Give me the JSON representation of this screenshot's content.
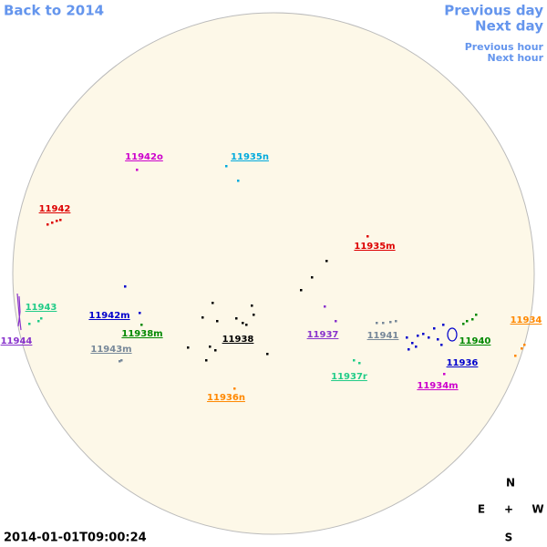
{
  "navigation": {
    "back": "Back to 2014",
    "previous_day": "Previous day",
    "next_day": "Next day",
    "previous_hour": "Previous hour",
    "next_hour": "Next hour"
  },
  "timestamp": "2014-01-01T09:00:24",
  "compass": {
    "north": "N",
    "east": "E",
    "center": "+",
    "west": "W",
    "south": "S"
  },
  "regions": [
    {
      "label": "11942o",
      "color": "#cc00cc"
    },
    {
      "label": "11935n",
      "color": "#00aadd"
    },
    {
      "label": "11942",
      "color": "#dd0000"
    },
    {
      "label": "11935m",
      "color": "#dd0000"
    },
    {
      "label": "11943",
      "color": "#22cc88"
    },
    {
      "label": "11942m",
      "color": "#0000cc"
    },
    {
      "label": "11938m",
      "color": "#008800"
    },
    {
      "label": "11944",
      "color": "#8833cc"
    },
    {
      "label": "11943m",
      "color": "#778899"
    },
    {
      "label": "11938",
      "color": "#000000"
    },
    {
      "label": "11937",
      "color": "#8833cc"
    },
    {
      "label": "11941",
      "color": "#778899"
    },
    {
      "label": "11934",
      "color": "#ff8800"
    },
    {
      "label": "11940",
      "color": "#008800"
    },
    {
      "label": "11936",
      "color": "#0000cc"
    },
    {
      "label": "11937r",
      "color": "#22cc88"
    },
    {
      "label": "11934m",
      "color": "#cc00cc"
    },
    {
      "label": "11936n",
      "color": "#ff8800"
    }
  ]
}
